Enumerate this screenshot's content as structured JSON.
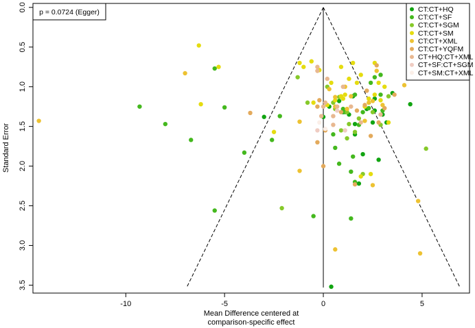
{
  "chart_data": {
    "type": "scatter",
    "subtype": "funnel-plot",
    "xlabel": [
      "Mean Difference centered at",
      "comparison-specific effect"
    ],
    "ylabel": "Standard Error",
    "xlim": [
      -14.7,
      7.4
    ],
    "ylim": [
      3.6,
      -0.05
    ],
    "y_reversed": true,
    "xticks": [
      -10,
      -5,
      0,
      5
    ],
    "yticks": [
      0.0,
      0.5,
      1.0,
      1.5,
      2.0,
      2.5,
      3.0,
      3.5
    ],
    "ytick_labels": [
      "0.0",
      "0.5",
      "1.0",
      "1.5",
      "2.0",
      "2.5",
      "3.0",
      "3.5"
    ],
    "annotation": "p = 0.0724 (Egger)",
    "funnel": {
      "apex": [
        0,
        0
      ],
      "se_max": 3.53,
      "slope": 1.96
    },
    "center_line": {
      "x": 0,
      "y": [
        0,
        3.53
      ]
    },
    "legend_placement": "top-right",
    "series": [
      {
        "name": "CT:CT+HQ",
        "color": "#11a411",
        "points": [
          [
            -3.0,
            1.38
          ],
          [
            0.3,
            1.25
          ],
          [
            0.8,
            1.18
          ],
          [
            1.3,
            1.35
          ],
          [
            1.5,
            1.12
          ],
          [
            2.2,
            1.28
          ],
          [
            2.6,
            1.15
          ],
          [
            3.0,
            1.35
          ],
          [
            3.5,
            1.08
          ],
          [
            4.4,
            1.22
          ],
          [
            2.5,
            1.45
          ],
          [
            1.6,
            1.6
          ],
          [
            2.8,
            1.92
          ],
          [
            1.8,
            2.22
          ],
          [
            0.4,
            3.52
          ],
          [
            0,
            1.38
          ],
          [
            2.0,
            1.85
          ],
          [
            3.2,
            1.45
          ],
          [
            1.0,
            1.32
          ],
          [
            2.6,
            1.3
          ],
          [
            1.6,
            1.47
          ]
        ]
      },
      {
        "name": "CT:CT+SF",
        "color": "#44b81e",
        "points": [
          [
            -9.3,
            1.25
          ],
          [
            -5.5,
            0.77
          ],
          [
            -5.0,
            1.26
          ],
          [
            -6.7,
            1.67
          ],
          [
            -4.0,
            1.83
          ],
          [
            -2.2,
            1.37
          ],
          [
            -2.6,
            1.67
          ],
          [
            -5.5,
            2.56
          ],
          [
            -0.5,
            2.63
          ],
          [
            -8.0,
            1.47
          ],
          [
            0.5,
            1.6
          ],
          [
            1.0,
            1.28
          ],
          [
            1.6,
            1.1
          ],
          [
            2.0,
            1.32
          ],
          [
            2.4,
            0.95
          ],
          [
            2.9,
            0.85
          ],
          [
            3.0,
            1.3
          ],
          [
            1.8,
            1.48
          ],
          [
            0.6,
            1.77
          ],
          [
            0.8,
            1.97
          ],
          [
            1.5,
            1.88
          ],
          [
            1.4,
            2.07
          ],
          [
            1.6,
            2.2
          ],
          [
            1.4,
            2.66
          ],
          [
            2.6,
            0.88
          ],
          [
            2.3,
            1.27
          ],
          [
            1.1,
            1.32
          ],
          [
            2.9,
            1.1
          ]
        ]
      },
      {
        "name": "CT:CT+SGM",
        "color": "#86c92a",
        "points": [
          [
            5.2,
            1.78
          ],
          [
            -2.1,
            2.53
          ],
          [
            -1.3,
            0.88
          ],
          [
            1.2,
            1.32
          ],
          [
            0.5,
            1.2
          ],
          [
            0.8,
            1.13
          ],
          [
            2.0,
            2.1
          ],
          [
            0.2,
            1.0
          ],
          [
            1.6,
            1.57
          ],
          [
            2.5,
            1.32
          ],
          [
            3.3,
            1.12
          ],
          [
            1.3,
            1.47
          ],
          [
            0.6,
            1.28
          ],
          [
            1.2,
            1.65
          ],
          [
            2.9,
            1.48
          ],
          [
            0.9,
            1.55
          ],
          [
            -0.8,
            1.2
          ],
          [
            1.8,
            1.4
          ]
        ]
      },
      {
        "name": "CT:CT+SM",
        "color": "#e5dc10",
        "points": [
          [
            -6.3,
            0.48
          ],
          [
            -5.3,
            0.75
          ],
          [
            -6.2,
            1.22
          ],
          [
            -1.2,
            0.7
          ],
          [
            -1.0,
            0.75
          ],
          [
            -0.6,
            0.68
          ],
          [
            0.4,
            0.95
          ],
          [
            0.9,
            1.12
          ],
          [
            1.1,
            1.1
          ],
          [
            1.3,
            0.9
          ],
          [
            1.7,
            0.95
          ],
          [
            2.3,
            1.15
          ],
          [
            2.6,
            1.1
          ],
          [
            3.3,
            1.45
          ],
          [
            -2.5,
            1.57
          ],
          [
            2.4,
            2.1
          ],
          [
            1.9,
            2.13
          ],
          [
            2.6,
            0.7
          ],
          [
            1.5,
            0.7
          ],
          [
            0.6,
            1.17
          ],
          [
            1.0,
            1.15
          ],
          [
            0.2,
            1.23
          ],
          [
            -0.5,
            1.2
          ],
          [
            2.1,
            1.25
          ],
          [
            2.9,
            1.17
          ],
          [
            3.1,
            1.0
          ],
          [
            2.8,
            0.95
          ],
          [
            1.9,
            0.85
          ],
          [
            0.9,
            0.75
          ],
          [
            -0.2,
            0.79
          ]
        ]
      },
      {
        "name": "CT:CT+XML",
        "color": "#edc232",
        "points": [
          [
            -14.4,
            1.43
          ],
          [
            -7.0,
            0.83
          ],
          [
            -1.2,
            2.06
          ],
          [
            -1.2,
            1.44
          ],
          [
            0.3,
            1.03
          ],
          [
            0.6,
            1.13
          ],
          [
            1.1,
            1.0
          ],
          [
            1.2,
            1.28
          ],
          [
            2.1,
            1.43
          ],
          [
            2.3,
            1.2
          ],
          [
            2.5,
            2.24
          ],
          [
            3.0,
            1.23
          ],
          [
            4.1,
            0.98
          ],
          [
            4.8,
            2.44
          ],
          [
            0.6,
            3.05
          ],
          [
            4.9,
            3.1
          ],
          [
            2.7,
            0.8
          ],
          [
            2.5,
            1.18
          ],
          [
            1.4,
            1.12
          ],
          [
            0.6,
            1.25
          ]
        ]
      },
      {
        "name": "CT:CT+YQFM",
        "color": "#e3aa5c",
        "points": [
          [
            -3.7,
            1.33
          ],
          [
            -0.2,
            1.17
          ],
          [
            -0.3,
            1.25
          ],
          [
            0.1,
            1.55
          ],
          [
            -0.3,
            1.7
          ],
          [
            0.9,
            1.32
          ],
          [
            1.6,
            2.23
          ],
          [
            2.1,
            1.23
          ],
          [
            2.4,
            1.62
          ],
          [
            2.7,
            0.73
          ],
          [
            3.1,
            1.27
          ],
          [
            3.6,
            1.1
          ],
          [
            2.8,
            1.45
          ],
          [
            0,
            2.0
          ],
          [
            1.7,
            1.3
          ],
          [
            2.2,
            1.05
          ]
        ]
      },
      {
        "name": "CT+HQ:CT+XML",
        "color": "#e8b890",
        "points": [
          [
            -0.3,
            0.75
          ],
          [
            0.1,
            1.2
          ],
          [
            1.0,
            1.0
          ],
          [
            1.9,
            1.45
          ],
          [
            -0.1,
            1.37
          ],
          [
            0.7,
            1.25
          ],
          [
            -0.3,
            0.8
          ],
          [
            0.2,
            0.9
          ],
          [
            0.5,
            1.48
          ],
          [
            1.4,
            1.25
          ],
          [
            2.9,
            1.35
          ],
          [
            0,
            1.25
          ],
          [
            0.5,
            1.37
          ]
        ]
      },
      {
        "name": "CT+SF:CT+SGM",
        "color": "#efccc2",
        "points": [
          [
            0.7,
            1.3
          ],
          [
            -0.3,
            1.55
          ],
          [
            1.1,
            1.55
          ]
        ]
      },
      {
        "name": "CT+SM:CT+XML",
        "color": "#fbefe8",
        "points": [
          [
            0.1,
            1.53
          ],
          [
            -0.2,
            1.45
          ]
        ]
      }
    ]
  }
}
